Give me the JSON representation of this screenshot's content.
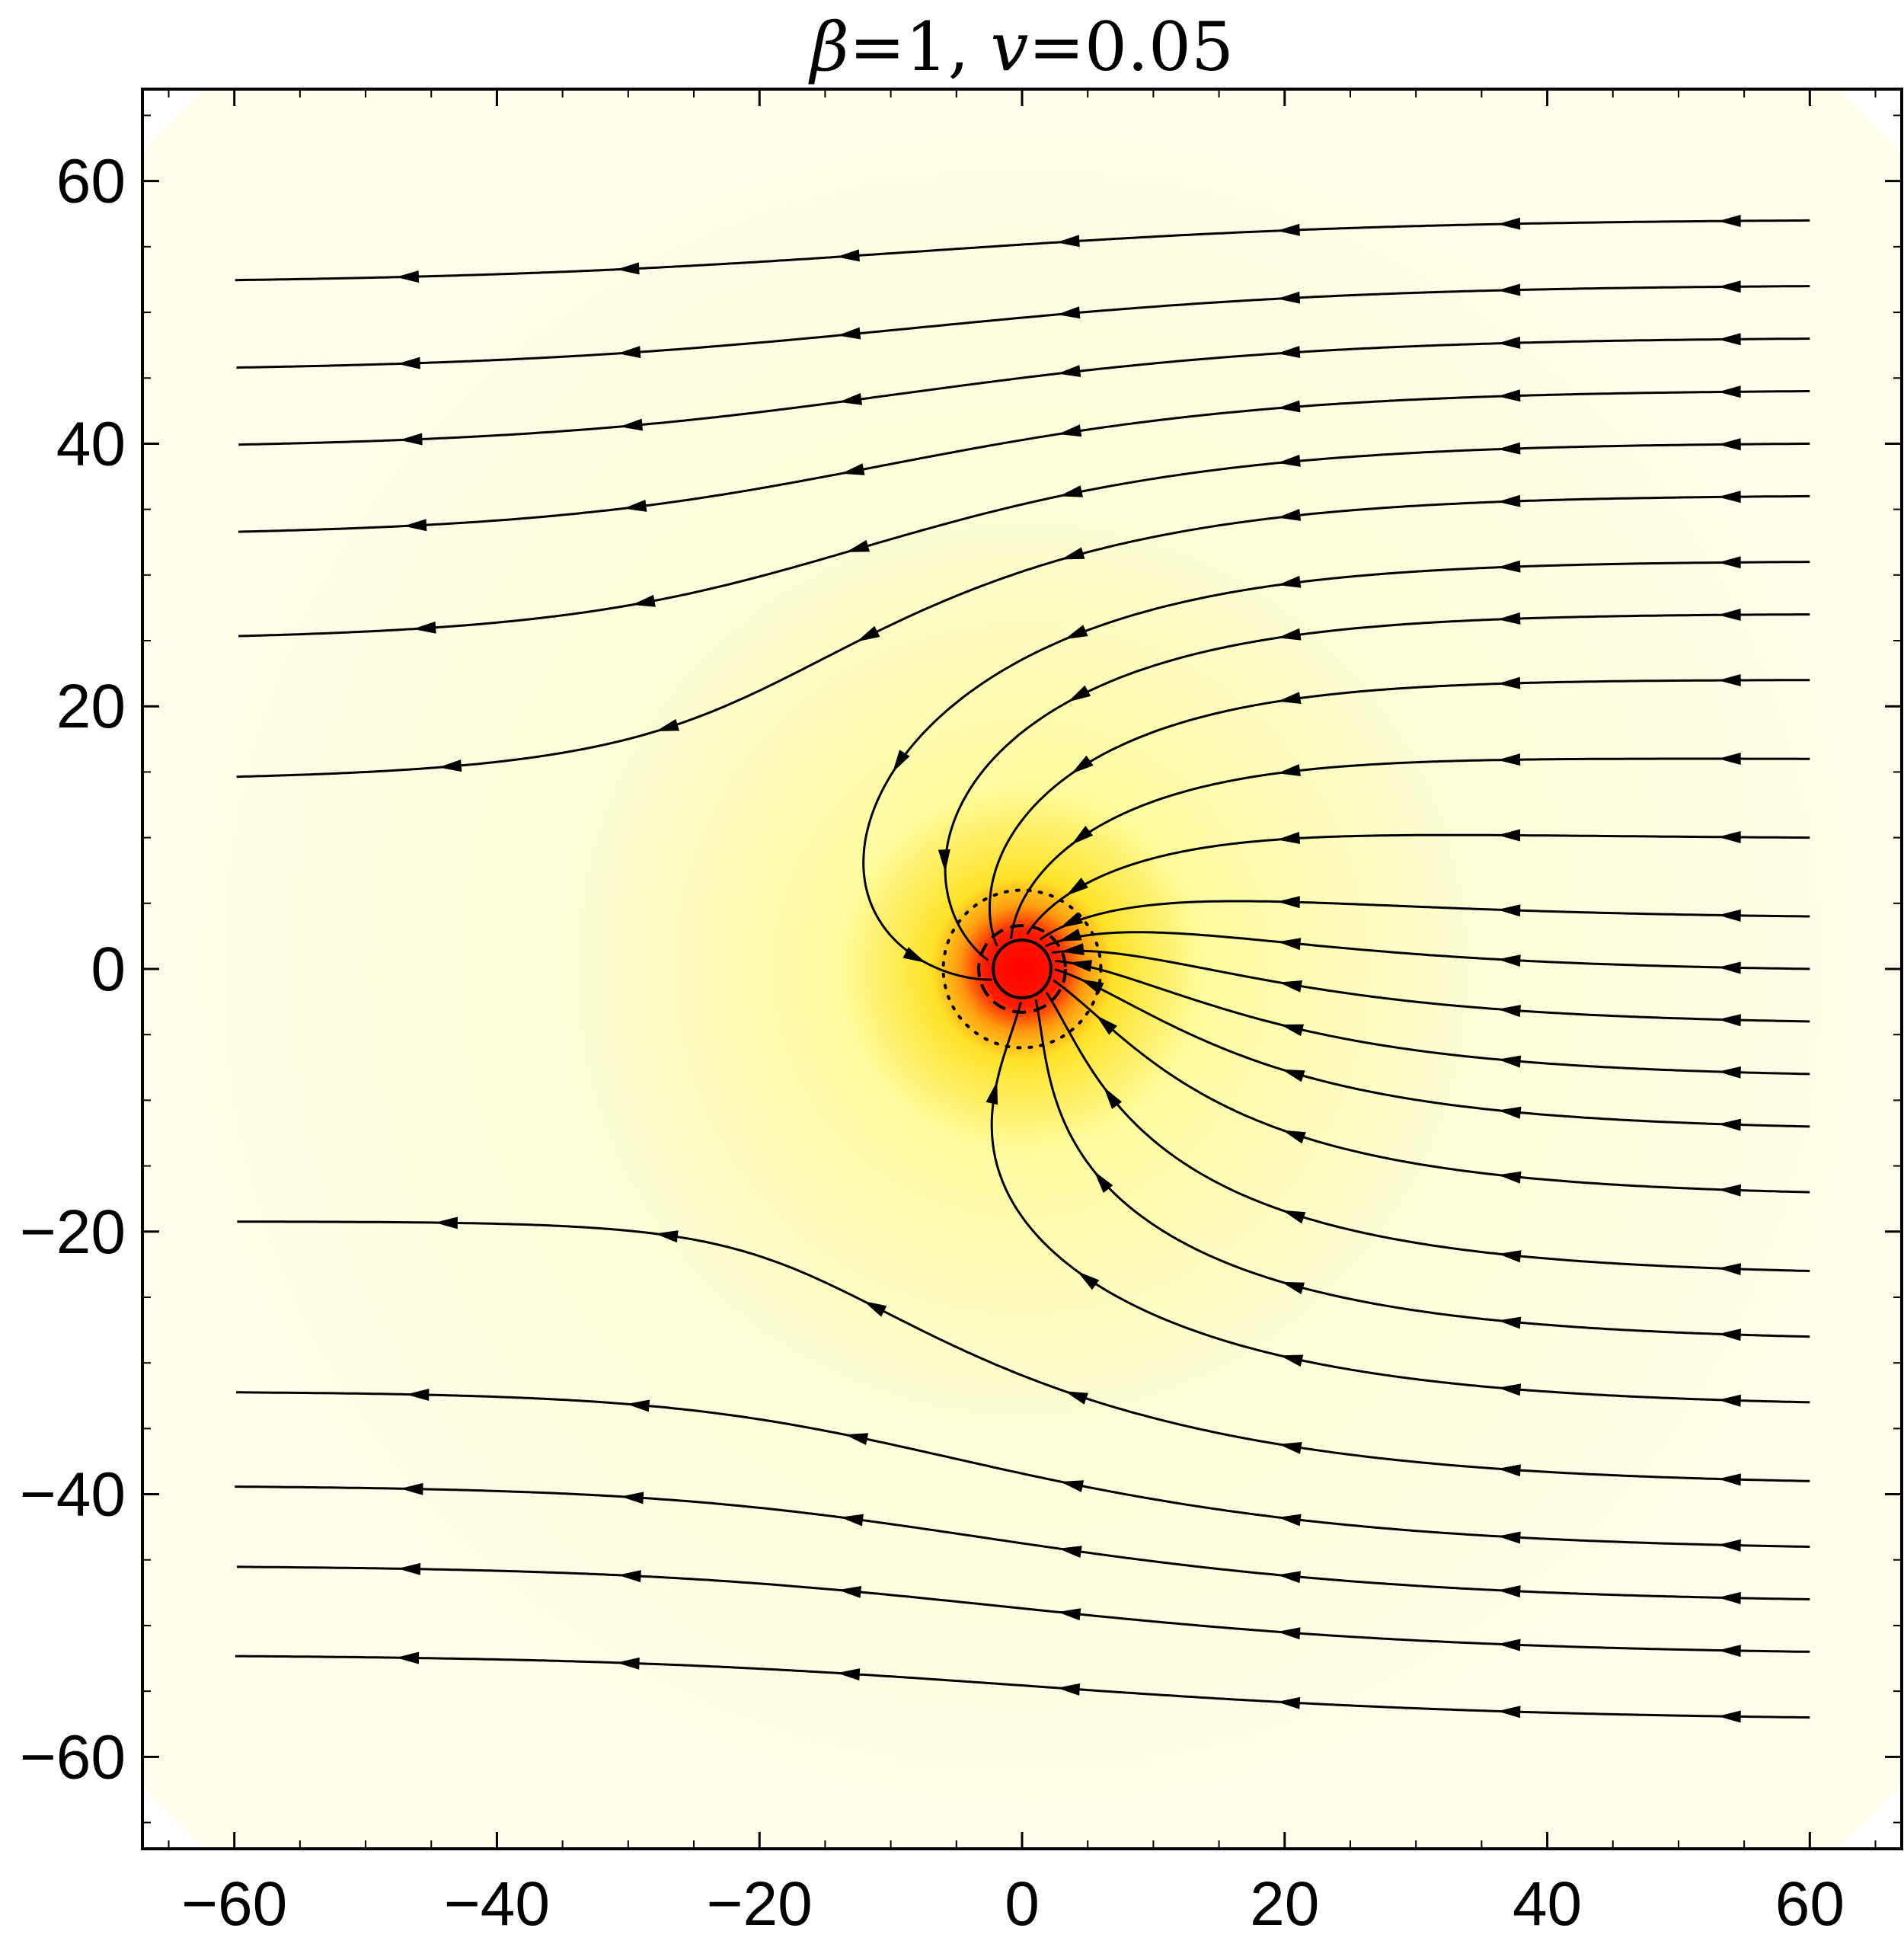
{
  "chart_data": {
    "type": "streamplot",
    "title": "β=1, v=0.05",
    "title_parts": {
      "beta_symbol": "β",
      "beta_value": "=1, ",
      "v_symbol": "v",
      "v_value": "=0.05"
    },
    "xlim": [
      -67,
      67
    ],
    "ylim": [
      -67,
      67
    ],
    "x_ticks": [
      -60,
      -40,
      -20,
      0,
      20,
      40,
      60
    ],
    "y_ticks": [
      -60,
      -40,
      -20,
      0,
      20,
      40,
      60
    ],
    "x_tick_labels": [
      "−60",
      "−40",
      "−20",
      "0",
      "20",
      "40",
      "60"
    ],
    "y_tick_labels": [
      "−60",
      "−40",
      "−20",
      "0",
      "20",
      "40",
      "60"
    ],
    "flow_direction": "left",
    "flow_speed": 0.05,
    "centre": [
      0,
      0
    ],
    "inner_disk_radius": 2.2,
    "dashed_circle_radius": 3.3,
    "dotted_circle_radius": 6,
    "background_colors": {
      "far": "#fdfde9",
      "mid": "#fefca0",
      "near": "#ffe32a",
      "core": "#ff0000"
    },
    "stream_color": "#000000",
    "stream_rows_y": [
      57,
      52,
      48,
      44,
      40,
      36,
      31,
      27,
      22,
      16,
      10,
      4,
      0,
      -4,
      -8,
      -12,
      -17,
      -23,
      -28,
      -33,
      -39,
      -44,
      -48,
      -52,
      -57
    ]
  }
}
